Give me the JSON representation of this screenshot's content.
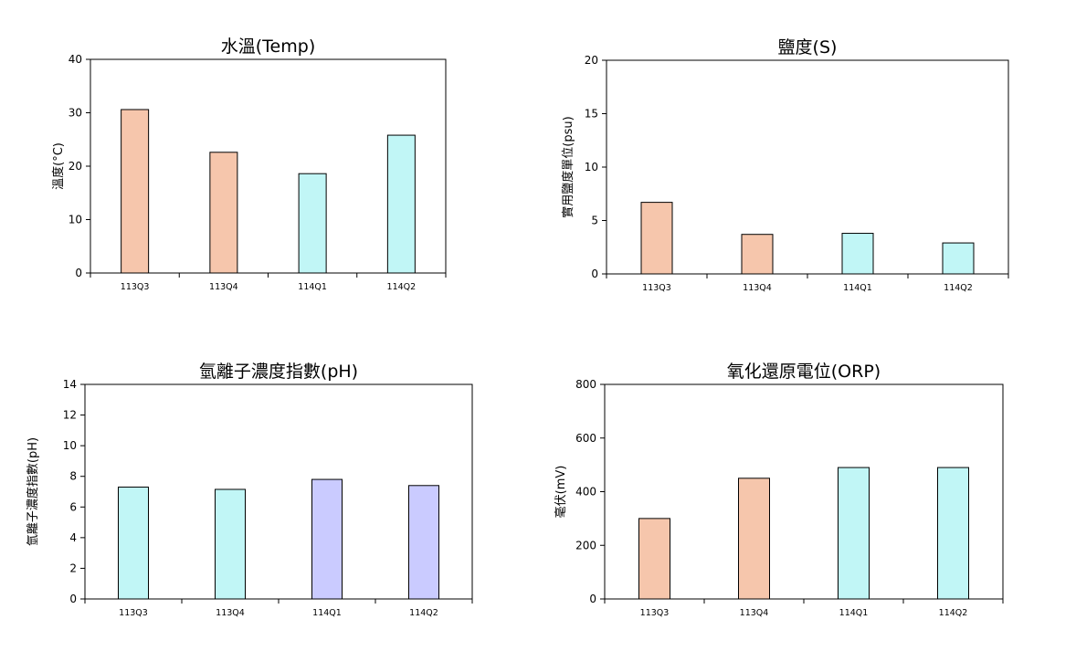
{
  "colors": {
    "peach": "#f6c6ac",
    "cyan": "#c1f6f6",
    "lavender": "#cacbff",
    "stroke": "#000000"
  },
  "chart_data": [
    {
      "type": "bar",
      "title": "水溫(Temp)",
      "ylabel": "溫度(°C)",
      "xlabel": "",
      "ylim": [
        0,
        40
      ],
      "yticks": [
        0,
        10,
        20,
        30,
        40
      ],
      "categories": [
        "113Q3",
        "113Q4",
        "114Q1",
        "114Q2"
      ],
      "values": [
        30.6,
        22.6,
        18.6,
        25.8
      ],
      "bar_colors": [
        "peach",
        "peach",
        "cyan",
        "cyan"
      ],
      "grid": false
    },
    {
      "type": "bar",
      "title": "鹽度(S)",
      "ylabel": "實用鹽度單位(psu)",
      "xlabel": "",
      "ylim": [
        0,
        20
      ],
      "yticks": [
        0,
        5,
        10,
        15,
        20
      ],
      "categories": [
        "113Q3",
        "113Q4",
        "114Q1",
        "114Q2"
      ],
      "values": [
        6.7,
        3.7,
        3.8,
        2.9
      ],
      "bar_colors": [
        "peach",
        "peach",
        "cyan",
        "cyan"
      ],
      "grid": false
    },
    {
      "type": "bar",
      "title": "氫離子濃度指數(pH)",
      "ylabel": "氫離子濃度指數(pH)",
      "xlabel": "",
      "ylim": [
        0,
        14
      ],
      "yticks": [
        0,
        2,
        4,
        6,
        8,
        10,
        12,
        14
      ],
      "categories": [
        "113Q3",
        "113Q4",
        "114Q1",
        "114Q2"
      ],
      "values": [
        7.3,
        7.15,
        7.8,
        7.4
      ],
      "bar_colors": [
        "cyan",
        "cyan",
        "lavender",
        "lavender"
      ],
      "grid": false
    },
    {
      "type": "bar",
      "title": "氧化還原電位(ORP)",
      "ylabel": "毫伏(mV)",
      "xlabel": "",
      "ylim": [
        0,
        800
      ],
      "yticks": [
        0,
        200,
        400,
        600,
        800
      ],
      "categories": [
        "113Q3",
        "113Q4",
        "114Q1",
        "114Q2"
      ],
      "values": [
        300,
        450,
        490,
        490
      ],
      "bar_colors": [
        "peach",
        "peach",
        "cyan",
        "cyan"
      ],
      "grid": false
    }
  ]
}
